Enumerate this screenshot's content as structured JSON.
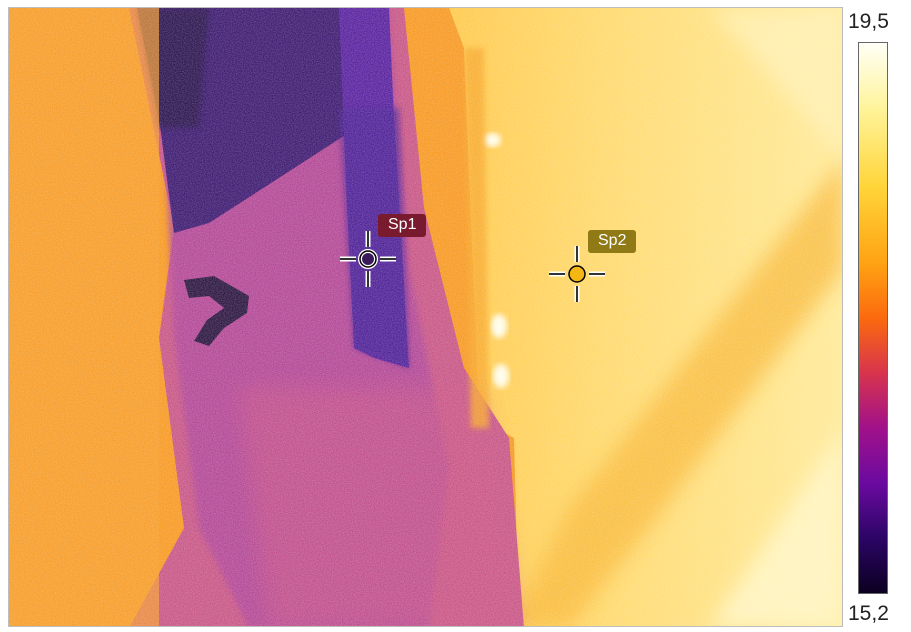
{
  "image": {
    "description_palette": "iron",
    "colors": {
      "hot": "#fff8d6",
      "warm": "#ffc22e",
      "mid": "#f5860c",
      "cool": "#a9359b",
      "cold": "#2a0660"
    }
  },
  "spots": [
    {
      "label": "Sp1",
      "marker_color": "#3a1a5a"
    },
    {
      "label": "Sp2",
      "marker_color": "#f3b612"
    }
  ],
  "scale": {
    "max": "19,5",
    "min": "15,2"
  }
}
